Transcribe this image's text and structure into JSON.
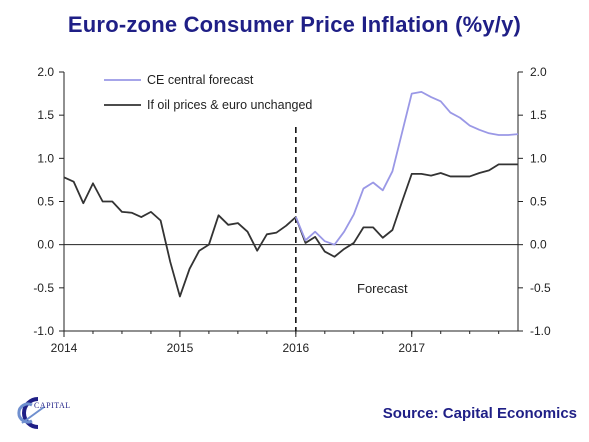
{
  "title": "Euro-zone Consumer Price Inflation (%y/y)",
  "source": "Source: Capital Economics",
  "logo_text": "CAPITAL",
  "colors": {
    "forecast": "#9a98e6",
    "unchanged": "#333333",
    "title": "#1f1f86"
  },
  "chart_data": {
    "type": "line",
    "xlabel": "",
    "ylabel": "",
    "x_ticks": [
      "2014",
      "2015",
      "2016",
      "2017"
    ],
    "x_range": [
      "2014-01",
      "2017-12"
    ],
    "ylim": [
      -1.0,
      2.0
    ],
    "y_ticks": [
      "2.0",
      "1.5",
      "1.0",
      "0.5",
      "0.0",
      "-0.5",
      "-1.0"
    ],
    "y_axis_both_sides": true,
    "grid": false,
    "legend": "top-left",
    "forecast_start": "2016-01",
    "annotation": "Forecast",
    "series": [
      {
        "name": "CE central forecast",
        "color": "#9a98e6",
        "points": [
          [
            "2016-01",
            0.32
          ],
          [
            "2016-02",
            0.05
          ],
          [
            "2016-03",
            0.15
          ],
          [
            "2016-04",
            0.04
          ],
          [
            "2016-05",
            0.0
          ],
          [
            "2016-06",
            0.15
          ],
          [
            "2016-07",
            0.35
          ],
          [
            "2016-08",
            0.65
          ],
          [
            "2016-09",
            0.72
          ],
          [
            "2016-10",
            0.63
          ],
          [
            "2016-11",
            0.85
          ],
          [
            "2016-12",
            1.3
          ],
          [
            "2017-01",
            1.75
          ],
          [
            "2017-02",
            1.77
          ],
          [
            "2017-03",
            1.71
          ],
          [
            "2017-04",
            1.66
          ],
          [
            "2017-05",
            1.53
          ],
          [
            "2017-06",
            1.47
          ],
          [
            "2017-07",
            1.38
          ],
          [
            "2017-08",
            1.33
          ],
          [
            "2017-09",
            1.29
          ],
          [
            "2017-10",
            1.27
          ],
          [
            "2017-11",
            1.27
          ],
          [
            "2017-12",
            1.28
          ]
        ]
      },
      {
        "name": "If oil prices & euro unchanged",
        "color": "#333333",
        "points": [
          [
            "2014-01",
            0.78
          ],
          [
            "2014-02",
            0.73
          ],
          [
            "2014-03",
            0.48
          ],
          [
            "2014-04",
            0.71
          ],
          [
            "2014-05",
            0.5
          ],
          [
            "2014-06",
            0.5
          ],
          [
            "2014-07",
            0.38
          ],
          [
            "2014-08",
            0.37
          ],
          [
            "2014-09",
            0.32
          ],
          [
            "2014-10",
            0.38
          ],
          [
            "2014-11",
            0.28
          ],
          [
            "2014-12",
            -0.2
          ],
          [
            "2015-01",
            -0.6
          ],
          [
            "2015-02",
            -0.28
          ],
          [
            "2015-03",
            -0.07
          ],
          [
            "2015-04",
            0.0
          ],
          [
            "2015-05",
            0.34
          ],
          [
            "2015-06",
            0.23
          ],
          [
            "2015-07",
            0.25
          ],
          [
            "2015-08",
            0.15
          ],
          [
            "2015-09",
            -0.07
          ],
          [
            "2015-10",
            0.12
          ],
          [
            "2015-11",
            0.14
          ],
          [
            "2015-12",
            0.22
          ],
          [
            "2016-01",
            0.32
          ],
          [
            "2016-02",
            0.02
          ],
          [
            "2016-03",
            0.09
          ],
          [
            "2016-04",
            -0.08
          ],
          [
            "2016-05",
            -0.14
          ],
          [
            "2016-06",
            -0.05
          ],
          [
            "2016-07",
            0.02
          ],
          [
            "2016-08",
            0.2
          ],
          [
            "2016-09",
            0.2
          ],
          [
            "2016-10",
            0.08
          ],
          [
            "2016-11",
            0.17
          ],
          [
            "2016-12",
            0.5
          ],
          [
            "2017-01",
            0.82
          ],
          [
            "2017-02",
            0.82
          ],
          [
            "2017-03",
            0.8
          ],
          [
            "2017-04",
            0.83
          ],
          [
            "2017-05",
            0.79
          ],
          [
            "2017-06",
            0.79
          ],
          [
            "2017-07",
            0.79
          ],
          [
            "2017-08",
            0.83
          ],
          [
            "2017-09",
            0.86
          ],
          [
            "2017-10",
            0.93
          ],
          [
            "2017-11",
            0.93
          ],
          [
            "2017-12",
            0.93
          ]
        ]
      }
    ]
  }
}
